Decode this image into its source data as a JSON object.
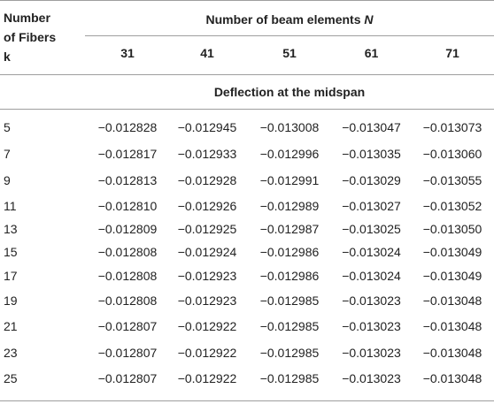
{
  "table": {
    "corner_header_lines": [
      "Number",
      "of Fibers",
      "k"
    ],
    "group_header": "Number of beam elements",
    "group_header_symbol": "N",
    "columns": [
      "31",
      "41",
      "51",
      "61",
      "71"
    ],
    "section_header": "Deflection at the midspan",
    "rows": [
      {
        "k": "5",
        "values": [
          "−0.012828",
          "−0.012945",
          "−0.013008",
          "−0.013047",
          "−0.013073"
        ]
      },
      {
        "k": "7",
        "values": [
          "−0.012817",
          "−0.012933",
          "−0.012996",
          "−0.013035",
          "−0.013060"
        ]
      },
      {
        "k": "9",
        "values": [
          "−0.012813",
          "−0.012928",
          "−0.012991",
          "−0.013029",
          "−0.013055"
        ]
      },
      {
        "k": "11",
        "values": [
          "−0.012810",
          "−0.012926",
          "−0.012989",
          "−0.013027",
          "−0.013052"
        ]
      },
      {
        "k": "13",
        "values": [
          "−0.012809",
          "−0.012925",
          "−0.012987",
          "−0.013025",
          "−0.013050"
        ]
      },
      {
        "k": "15",
        "values": [
          "−0.012808",
          "−0.012924",
          "−0.012986",
          "−0.013024",
          "−0.013049"
        ]
      },
      {
        "k": "17",
        "values": [
          "−0.012808",
          "−0.012923",
          "−0.012986",
          "−0.013024",
          "−0.013049"
        ]
      },
      {
        "k": "19",
        "values": [
          "−0.012808",
          "−0.012923",
          "−0.012985",
          "−0.013023",
          "−0.013048"
        ]
      },
      {
        "k": "21",
        "values": [
          "−0.012807",
          "−0.012922",
          "−0.012985",
          "−0.013023",
          "−0.013048"
        ]
      },
      {
        "k": "23",
        "values": [
          "−0.012807",
          "−0.012922",
          "−0.012985",
          "−0.013023",
          "−0.013048"
        ]
      },
      {
        "k": "25",
        "values": [
          "−0.012807",
          "−0.012922",
          "−0.012985",
          "−0.013023",
          "−0.013048"
        ]
      }
    ]
  }
}
